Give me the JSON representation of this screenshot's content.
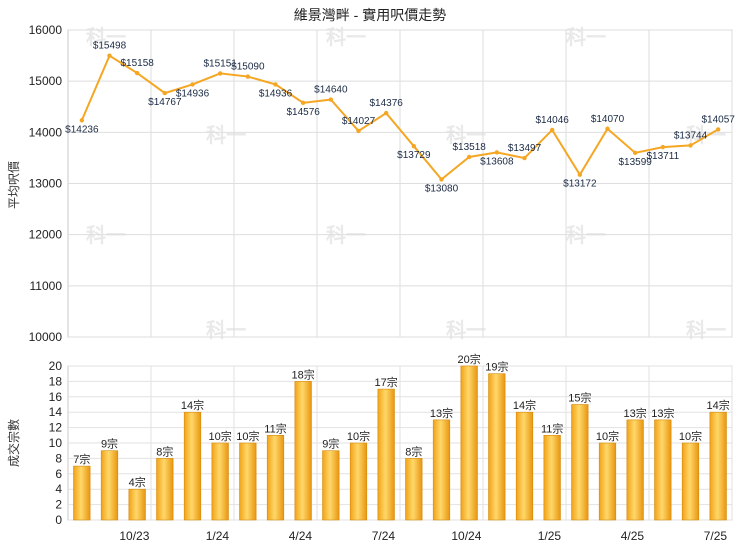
{
  "title": "維景灣畔 - 實用呎價走勢",
  "chart_data": [
    {
      "type": "line",
      "ylabel": "平均呎價",
      "ylim": [
        10000,
        16000
      ],
      "yticks": [
        10000,
        11000,
        12000,
        13000,
        14000,
        15000,
        16000
      ],
      "values": [
        14236,
        15498,
        15158,
        14767,
        14936,
        15151,
        15090,
        14936,
        14576,
        14640,
        14027,
        14376,
        13729,
        13080,
        13518,
        13608,
        13497,
        14046,
        13172,
        14070,
        13599,
        13711,
        13744,
        14057
      ],
      "labels": [
        "$14236",
        "$15498",
        "$15158",
        "$14767",
        "$14936",
        "$15151",
        "$15090",
        "$14936",
        "$14576",
        "$14640",
        "$14027",
        "$14376",
        "$13729",
        "$13080",
        "$13518",
        "$13608",
        "$13497",
        "$14046",
        "$13172",
        "$14070",
        "$13599",
        "$13711",
        "$13744",
        "$14057"
      ],
      "color": "#f5a623",
      "grid": true
    },
    {
      "type": "bar",
      "ylabel": "成交宗數",
      "ylim": [
        0,
        20
      ],
      "yticks": [
        0,
        2,
        4,
        6,
        8,
        10,
        12,
        14,
        16,
        18,
        20
      ],
      "values": [
        7,
        9,
        4,
        8,
        14,
        10,
        10,
        11,
        18,
        9,
        10,
        17,
        8,
        13,
        20,
        19,
        14,
        11,
        15,
        10,
        13,
        13,
        10,
        14
      ],
      "labels": [
        "7宗",
        "9宗",
        "4宗",
        "8宗",
        "14宗",
        "10宗",
        "10宗",
        "11宗",
        "18宗",
        "9宗",
        "10宗",
        "17宗",
        "8宗",
        "13宗",
        "20宗",
        "19宗",
        "14宗",
        "11宗",
        "15宗",
        "10宗",
        "13宗",
        "13宗",
        "10宗",
        "14宗"
      ],
      "color": "#f5b01f",
      "xtick_labels": [
        "10/23",
        "1/24",
        "4/24",
        "7/24",
        "10/24",
        "1/25",
        "4/25",
        "7/25"
      ],
      "xtick_index": [
        2,
        5,
        8,
        11,
        14,
        17,
        20,
        23
      ],
      "grid": true
    }
  ],
  "watermark": "科一"
}
